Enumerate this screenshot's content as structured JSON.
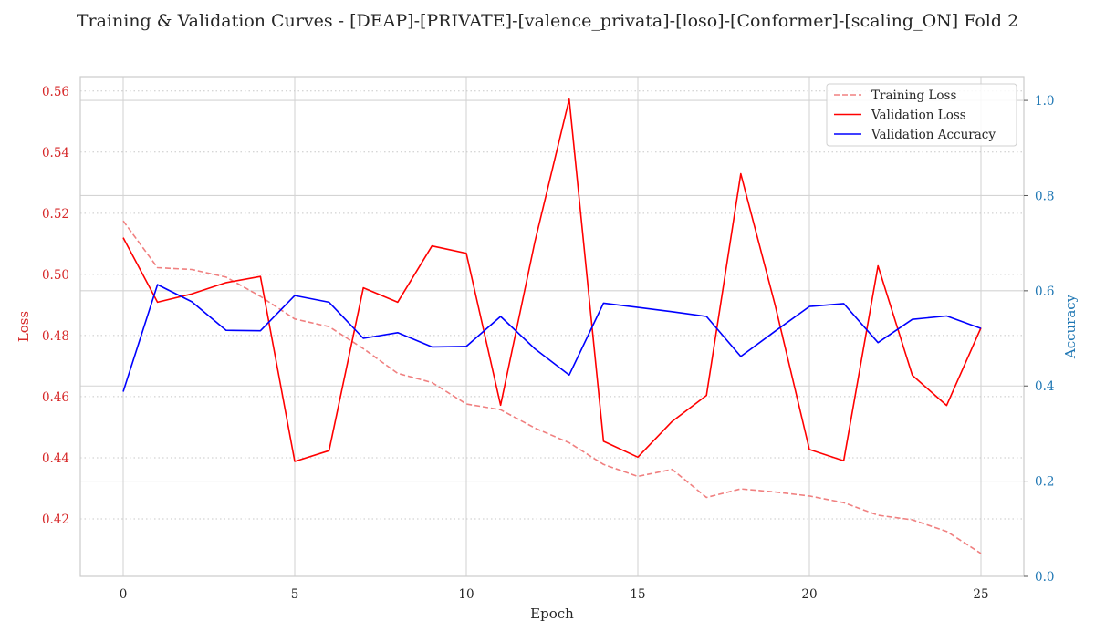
{
  "chart_data": {
    "type": "line",
    "title": "Training & Validation Curves - [DEAP]-[PRIVATE]-[valence_privata]-[loso]-[Conformer]-[scaling_ON] Fold 2",
    "xlabel": "Epoch",
    "ylabel_left": "Loss",
    "ylabel_right": "Accuracy",
    "xlim": [
      -1.25,
      26.25
    ],
    "ylim_left": [
      0.4012,
      0.5647
    ],
    "ylim_right": [
      0.0,
      1.05
    ],
    "x_ticks": [
      0,
      5,
      10,
      15,
      20,
      25
    ],
    "y_left_ticks": [
      0.42,
      0.44,
      0.46,
      0.48,
      0.5,
      0.52,
      0.54,
      0.56
    ],
    "y_right_ticks": [
      0.0,
      0.2,
      0.4,
      0.6,
      0.8,
      1.0
    ],
    "grid": true,
    "legend_position": "top-right",
    "x": [
      0,
      1,
      2,
      3,
      4,
      5,
      6,
      7,
      8,
      9,
      10,
      11,
      12,
      13,
      14,
      15,
      16,
      17,
      18,
      19,
      20,
      21,
      22,
      23,
      24,
      25
    ],
    "series": [
      {
        "name": "Training Loss",
        "axis": "left",
        "color": "#f08080",
        "dash": true,
        "values": [
          0.5175,
          0.5022,
          0.5016,
          0.4991,
          0.4928,
          0.4854,
          0.4829,
          0.4757,
          0.4676,
          0.4646,
          0.4576,
          0.4557,
          0.4497,
          0.4449,
          0.4378,
          0.4339,
          0.4362,
          0.427,
          0.4298,
          0.4288,
          0.4275,
          0.4253,
          0.4212,
          0.4197,
          0.4159,
          0.4087
        ]
      },
      {
        "name": "Validation Loss",
        "axis": "left",
        "color": "#ff0000",
        "dash": false,
        "values": [
          0.512,
          0.4909,
          0.4936,
          0.4973,
          0.4993,
          0.4388,
          0.4423,
          0.4956,
          0.4909,
          0.5093,
          0.5069,
          0.4572,
          0.5107,
          0.5573,
          0.4454,
          0.4402,
          0.4519,
          0.4604,
          0.5329,
          0.49,
          0.4427,
          0.439,
          0.5028,
          0.467,
          0.4571,
          0.4825
        ]
      },
      {
        "name": "Validation Accuracy",
        "axis": "right",
        "color": "#0000ff",
        "dash": false,
        "values": [
          0.388,
          0.613,
          0.577,
          0.517,
          0.516,
          0.59,
          0.576,
          0.5,
          0.512,
          0.482,
          0.483,
          0.546,
          0.478,
          0.423,
          0.574,
          0.565,
          0.556,
          0.546,
          0.462,
          0.515,
          0.567,
          0.573,
          0.491,
          0.54,
          0.547,
          0.521
        ]
      }
    ]
  }
}
